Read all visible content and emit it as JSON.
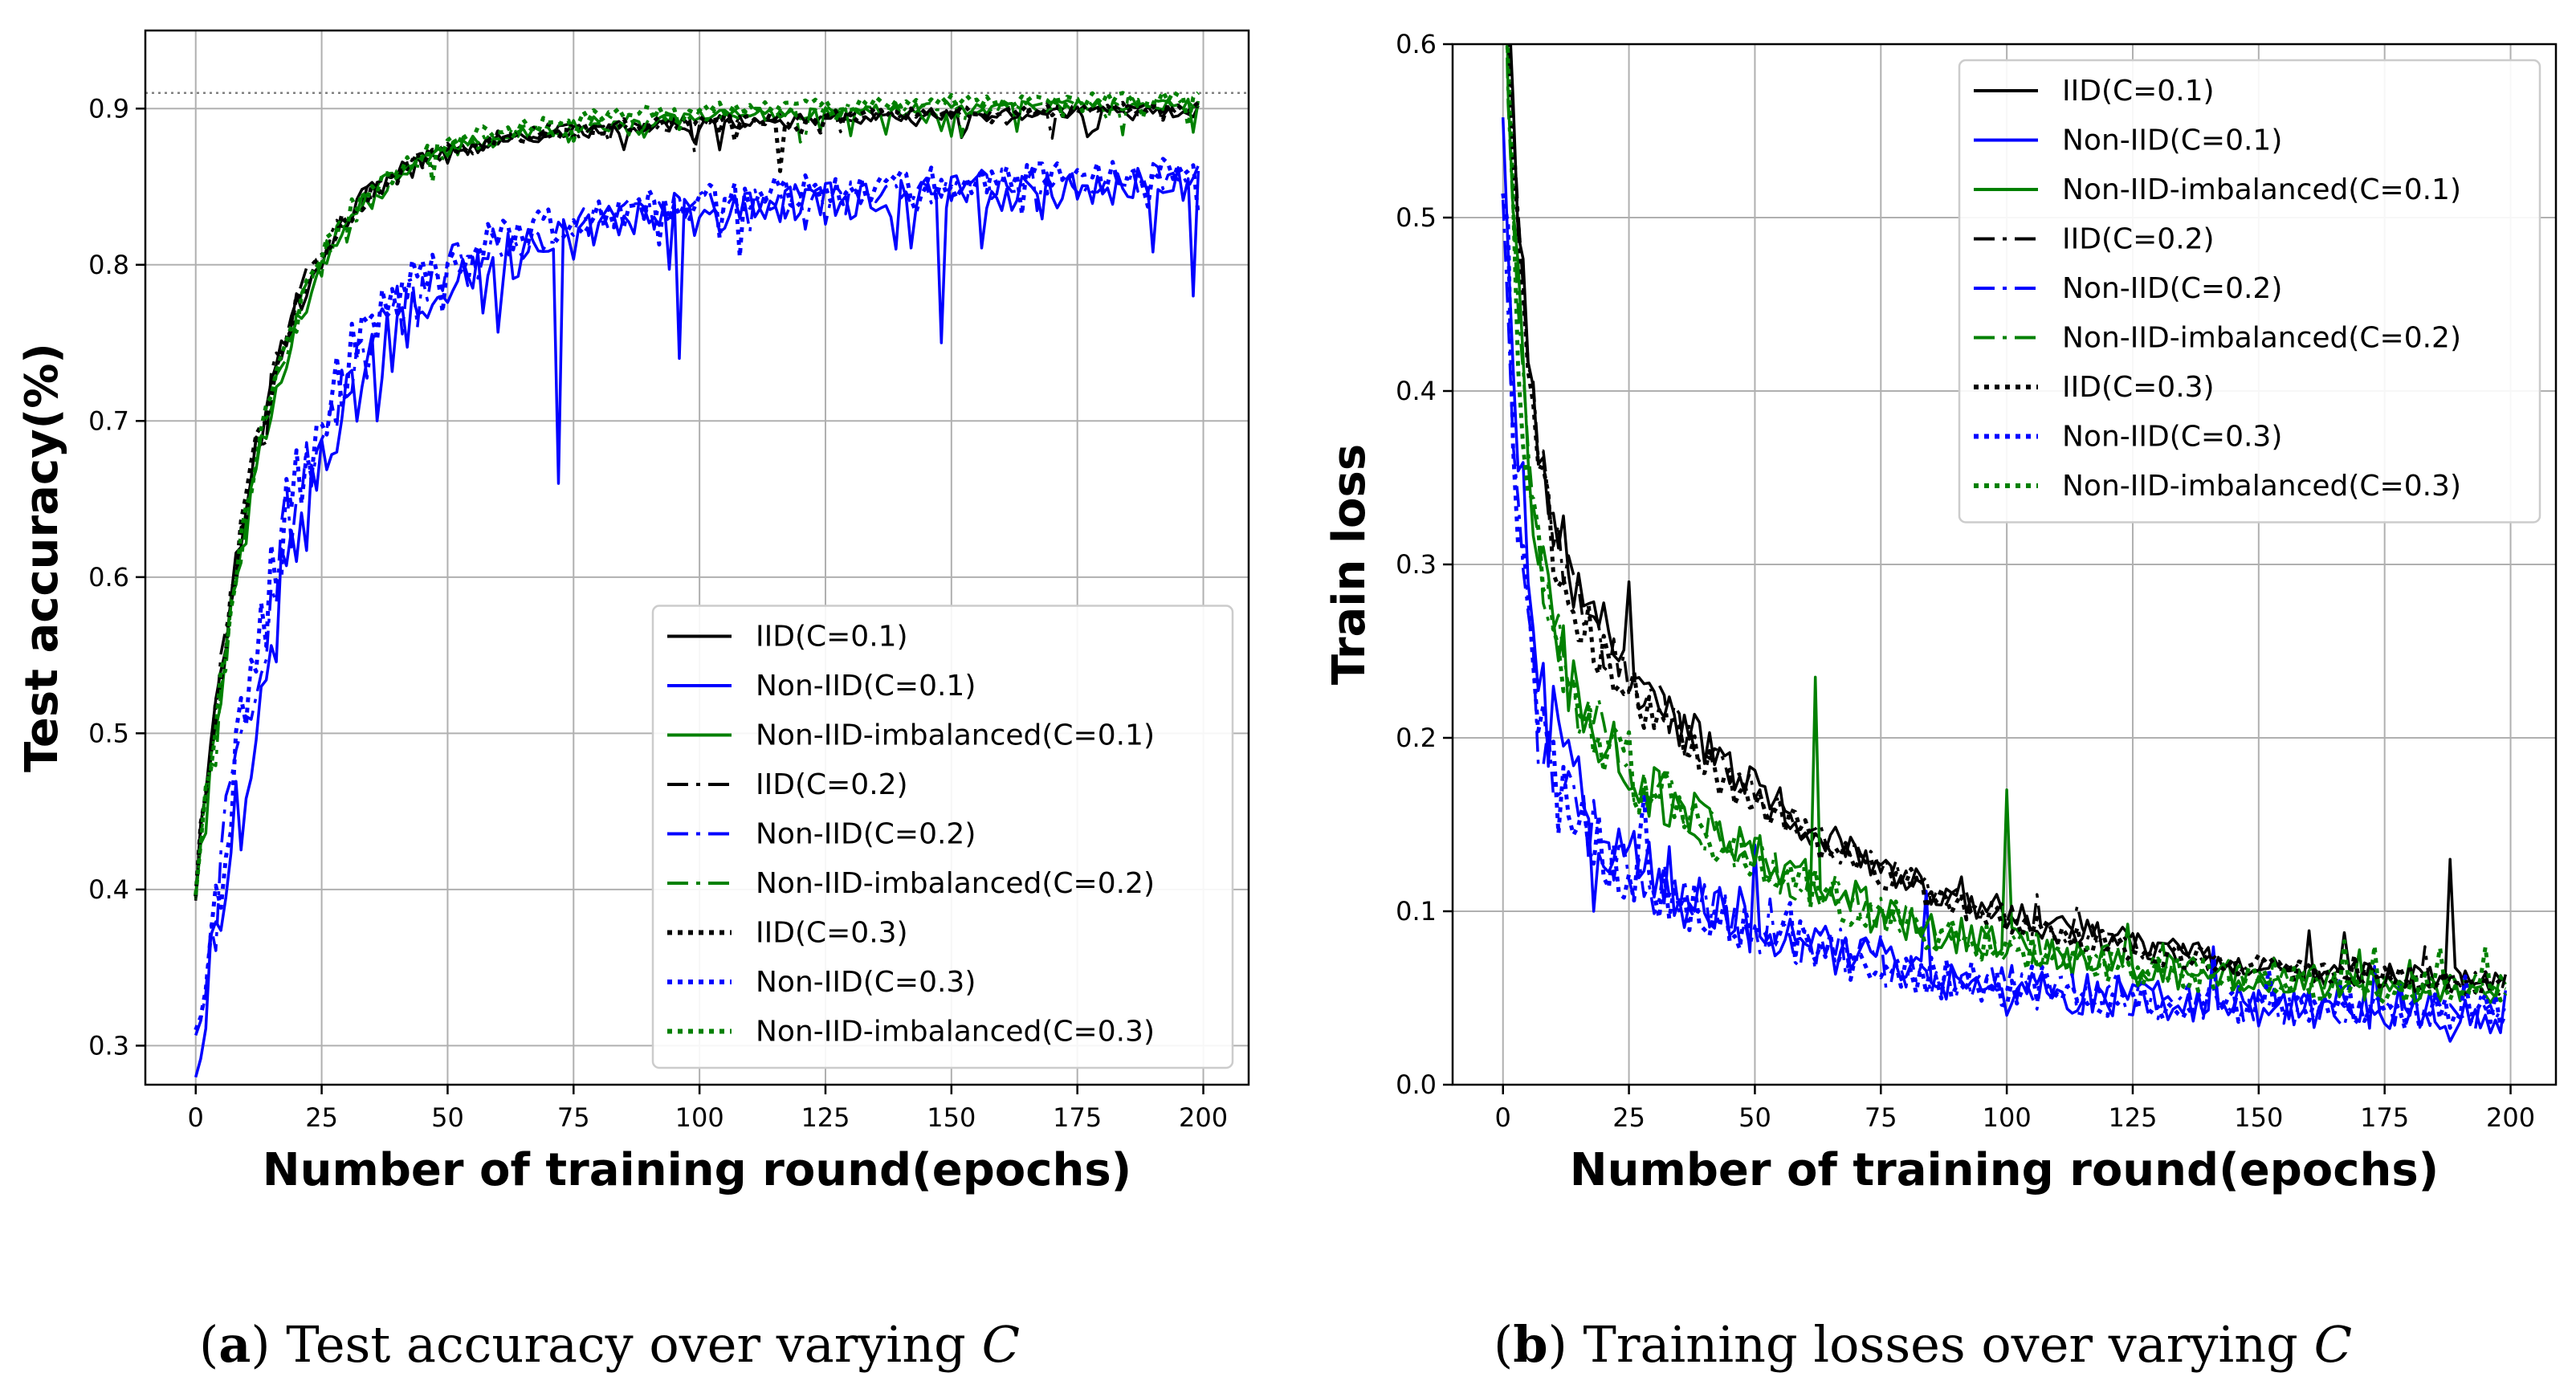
{
  "captions": {
    "a": {
      "open": "(",
      "letter": "a",
      "close": ")",
      "text": " Test accuracy over varying ",
      "var": "C"
    },
    "b": {
      "open": "(",
      "letter": "b",
      "close": ")",
      "text": " Training losses over varying ",
      "var": "C"
    }
  },
  "colors": {
    "black": "#000000",
    "blue": "#0000ff",
    "green": "#008000"
  },
  "chart_data": [
    {
      "type": "line",
      "title": "",
      "xlabel": "Number of training round(epochs)",
      "ylabel": "Test accuracy(%)",
      "xlim": [
        -10,
        209
      ],
      "ylim": [
        0.275,
        0.95
      ],
      "xticks": [
        0,
        25,
        50,
        75,
        100,
        125,
        150,
        175,
        200
      ],
      "yticks": [
        0.3,
        0.4,
        0.5,
        0.6,
        0.7,
        0.8,
        0.9
      ],
      "grid": true,
      "reference_line": {
        "y": 0.91,
        "style": "dotted",
        "color": "#808080"
      },
      "legend_position": "lower-right",
      "series": [
        {
          "name": "IID(C=0.1)",
          "color": "#000000",
          "style": "solid",
          "curve": {
            "start": 0.4,
            "plateau": 0.901,
            "tau": 12,
            "slow_amp": 0.045,
            "slow_tau": 70,
            "noise": 0.004,
            "spikes": []
          }
        },
        {
          "name": "Non-IID(C=0.1)",
          "color": "#0000ff",
          "style": "solid",
          "curve": {
            "start": 0.3,
            "plateau": 0.86,
            "tau": 17,
            "slow_amp": 0.08,
            "slow_tau": 90,
            "noise": 0.012,
            "spikes": [
              [
                13,
                0.53
              ],
              [
                20,
                0.61
              ],
              [
                28,
                0.68
              ],
              [
                36,
                0.7
              ],
              [
                72,
                0.66
              ],
              [
                96,
                0.74
              ],
              [
                148,
                0.75
              ],
              [
                198,
                0.78
              ]
            ]
          }
        },
        {
          "name": "Non-IID-imbalanced(C=0.1)",
          "color": "#008000",
          "style": "solid",
          "curve": {
            "start": 0.4,
            "plateau": 0.905,
            "tau": 13,
            "slow_amp": 0.045,
            "slow_tau": 70,
            "noise": 0.004,
            "spikes": []
          }
        },
        {
          "name": "IID(C=0.2)",
          "color": "#000000",
          "style": "dashdot",
          "curve": {
            "start": 0.4,
            "plateau": 0.902,
            "tau": 12,
            "slow_amp": 0.045,
            "slow_tau": 70,
            "noise": 0.004,
            "spikes": []
          }
        },
        {
          "name": "Non-IID(C=0.2)",
          "color": "#0000ff",
          "style": "dashdot",
          "curve": {
            "start": 0.32,
            "plateau": 0.865,
            "tau": 16,
            "slow_amp": 0.08,
            "slow_tau": 90,
            "noise": 0.01,
            "spikes": [
              [
                6,
                0.46
              ],
              [
                18,
                0.66
              ],
              [
                44,
                0.76
              ]
            ]
          }
        },
        {
          "name": "Non-IID-imbalanced(C=0.2)",
          "color": "#008000",
          "style": "dashdot",
          "curve": {
            "start": 0.4,
            "plateau": 0.906,
            "tau": 13,
            "slow_amp": 0.045,
            "slow_tau": 70,
            "noise": 0.004,
            "spikes": []
          }
        },
        {
          "name": "IID(C=0.3)",
          "color": "#000000",
          "style": "dotted",
          "curve": {
            "start": 0.4,
            "plateau": 0.903,
            "tau": 12,
            "slow_amp": 0.045,
            "slow_tau": 70,
            "noise": 0.004,
            "spikes": [
              [
                116,
                0.86
              ]
            ]
          }
        },
        {
          "name": "Non-IID(C=0.3)",
          "color": "#0000ff",
          "style": "dotted",
          "curve": {
            "start": 0.32,
            "plateau": 0.868,
            "tau": 15,
            "slow_amp": 0.08,
            "slow_tau": 90,
            "noise": 0.01,
            "spikes": []
          }
        },
        {
          "name": "Non-IID-imbalanced(C=0.3)",
          "color": "#008000",
          "style": "dotted",
          "curve": {
            "start": 0.4,
            "plateau": 0.91,
            "tau": 13,
            "slow_amp": 0.045,
            "slow_tau": 70,
            "noise": 0.004,
            "spikes": []
          }
        }
      ]
    },
    {
      "type": "line",
      "title": "",
      "xlabel": "Number of training round(epochs)",
      "ylabel": "Train loss",
      "xlim": [
        -10,
        209
      ],
      "ylim": [
        0.0,
        0.6
      ],
      "xticks": [
        0,
        25,
        50,
        75,
        100,
        125,
        150,
        175,
        200
      ],
      "yticks": [
        0.0,
        0.1,
        0.2,
        0.3,
        0.4,
        0.5,
        0.6
      ],
      "grid": true,
      "legend_position": "upper-right",
      "series": [
        {
          "name": "IID(C=0.1)",
          "color": "#000000",
          "style": "solid",
          "curve": {
            "start": 0.85,
            "floor": 0.05,
            "a1": 0.35,
            "t1": 4,
            "a2": 0.3,
            "t2": 55,
            "noise": 0.008,
            "spikes": [
              [
                25,
                0.29
              ],
              [
                188,
                0.13
              ]
            ]
          }
        },
        {
          "name": "Non-IID(C=0.1)",
          "color": "#0000ff",
          "style": "solid",
          "curve": {
            "start": 0.55,
            "floor": 0.04,
            "a1": 0.4,
            "t1": 4,
            "a2": 0.16,
            "t2": 45,
            "noise": 0.012,
            "spikes": [
              [
                18,
                0.1
              ],
              [
                100,
                0.04
              ],
              [
                188,
                0.025
              ]
            ]
          }
        },
        {
          "name": "Non-IID-imbalanced(C=0.1)",
          "color": "#008000",
          "style": "solid",
          "curve": {
            "start": 0.8,
            "floor": 0.05,
            "a1": 0.4,
            "t1": 4,
            "a2": 0.22,
            "t2": 50,
            "noise": 0.01,
            "spikes": [
              [
                62,
                0.235
              ],
              [
                100,
                0.17
              ]
            ]
          }
        },
        {
          "name": "IID(C=0.2)",
          "color": "#000000",
          "style": "dashdot",
          "curve": {
            "start": 0.8,
            "floor": 0.05,
            "a1": 0.35,
            "t1": 4,
            "a2": 0.29,
            "t2": 55,
            "noise": 0.007,
            "spikes": []
          }
        },
        {
          "name": "Non-IID(C=0.2)",
          "color": "#0000ff",
          "style": "dashdot",
          "curve": {
            "start": 0.5,
            "floor": 0.04,
            "a1": 0.4,
            "t1": 3,
            "a2": 0.15,
            "t2": 45,
            "noise": 0.01,
            "spikes": []
          }
        },
        {
          "name": "Non-IID-imbalanced(C=0.2)",
          "color": "#008000",
          "style": "dashdot",
          "curve": {
            "start": 0.7,
            "floor": 0.05,
            "a1": 0.4,
            "t1": 4,
            "a2": 0.22,
            "t2": 50,
            "noise": 0.009,
            "spikes": []
          }
        },
        {
          "name": "IID(C=0.3)",
          "color": "#000000",
          "style": "dotted",
          "curve": {
            "start": 0.75,
            "floor": 0.05,
            "a1": 0.35,
            "t1": 4,
            "a2": 0.28,
            "t2": 55,
            "noise": 0.007,
            "spikes": []
          }
        },
        {
          "name": "Non-IID(C=0.3)",
          "color": "#0000ff",
          "style": "dotted",
          "curve": {
            "start": 0.5,
            "floor": 0.04,
            "a1": 0.4,
            "t1": 3,
            "a2": 0.15,
            "t2": 45,
            "noise": 0.01,
            "spikes": []
          }
        },
        {
          "name": "Non-IID-imbalanced(C=0.3)",
          "color": "#008000",
          "style": "dotted",
          "curve": {
            "start": 0.7,
            "floor": 0.05,
            "a1": 0.4,
            "t1": 4,
            "a2": 0.21,
            "t2": 50,
            "noise": 0.009,
            "spikes": []
          }
        }
      ]
    }
  ]
}
